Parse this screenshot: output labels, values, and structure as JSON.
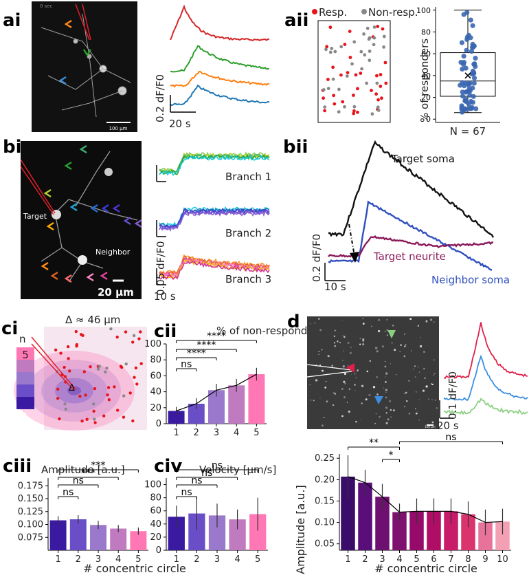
{
  "panel_labels": {
    "ai": "ai",
    "aii": "aii",
    "bi": "bi",
    "bii": "bii",
    "ci": "ci",
    "cii": "cii",
    "ciii": "ciii",
    "civ": "civ",
    "d": "d"
  },
  "ai": {
    "timestamp": "0 sec",
    "scalebar": "100 µm",
    "y_scale": "0.2 dF/F0",
    "x_scale": "20 s",
    "traces": [
      {
        "color": "#d62728",
        "peak": 1.0
      },
      {
        "color": "#2ca02c",
        "peak": 0.75
      },
      {
        "color": "#ff7f0e",
        "peak": 0.45
      },
      {
        "color": "#1f77b4",
        "peak": 0.55
      }
    ]
  },
  "aii": {
    "legend_resp": "Resp.",
    "legend_nonresp": "Non-resp.",
    "colors": {
      "resp": "#e8141c",
      "nonresp": "#888888",
      "box_points": "#3a66b0"
    },
    "n_label": "N = 67",
    "box": {
      "min": 6,
      "q1": 21,
      "median": 35,
      "q3": 61,
      "max": 100,
      "mean": 40
    }
  },
  "bi": {
    "target": "Target",
    "neighbor": "Neighbor",
    "scalebar": "20 µm",
    "y_scale": "0.05 dF/F0",
    "x_scale": "10 s",
    "branches": [
      "Branch 1",
      "Branch 2",
      "Branch 3"
    ]
  },
  "bii": {
    "target_soma": "Target soma",
    "target_neurite": "Target neurite",
    "neighbor_soma": "Neighbor soma",
    "y_scale": "0.2 dF/F0",
    "x_scale": "10 s",
    "colors": {
      "soma": "#111111",
      "neurite": "#8b1a5a",
      "neighbor": "#2f4fc0"
    }
  },
  "ci": {
    "delta": "Δ ≈ 46 µm",
    "n": "n",
    "top": "5",
    "bottom": "1",
    "delta_sym": "Δ",
    "ring_colors": [
      "#3a1aa0",
      "#6a4ec8",
      "#9a78cc",
      "#c07ac0",
      "#ff77b4"
    ]
  },
  "chart_data": [
    {
      "id": "cii",
      "type": "bar",
      "title": "% of non-responders",
      "categories": [
        "1",
        "2",
        "3",
        "4",
        "5"
      ],
      "values": [
        16,
        25,
        42,
        48,
        62
      ],
      "errors": [
        5,
        7,
        8,
        8,
        8
      ],
      "ylim": [
        0,
        100
      ],
      "yticks": [
        "0",
        "20",
        "40",
        "60",
        "80",
        "100"
      ],
      "significance": [
        "ns",
        "****",
        "****",
        "****"
      ],
      "colors": [
        "#3a1aa0",
        "#6a4ec8",
        "#9a78cc",
        "#c07ac0",
        "#ff77b4"
      ]
    },
    {
      "id": "ciii",
      "type": "bar",
      "title": "Amplitude [a.u.]",
      "categories": [
        "1",
        "2",
        "3",
        "4",
        "5"
      ],
      "values": [
        0.108,
        0.11,
        0.099,
        0.092,
        0.087
      ],
      "errors": [
        0.008,
        0.008,
        0.008,
        0.007,
        0.007
      ],
      "ylim": [
        0.05,
        0.19
      ],
      "yticks": [
        "0.075",
        "0.100",
        "0.125",
        "0.150",
        "0.175"
      ],
      "significance": [
        "ns",
        "ns",
        "***",
        "***"
      ],
      "colors": [
        "#3a1aa0",
        "#6a4ec8",
        "#9a78cc",
        "#c07ac0",
        "#ff77b4"
      ]
    },
    {
      "id": "civ",
      "type": "bar",
      "title": "Velocity [µm/s]",
      "categories": [
        "1",
        "2",
        "3",
        "4",
        "5"
      ],
      "values": [
        51,
        56,
        53,
        47,
        55
      ],
      "errors": [
        17,
        25,
        18,
        15,
        25
      ],
      "ylim": [
        0,
        110
      ],
      "yticks": [
        "0",
        "20",
        "40",
        "60",
        "80",
        "100"
      ],
      "significance": [
        "ns",
        "ns",
        "ns",
        "ns"
      ],
      "colors": [
        "#3a1aa0",
        "#6a4ec8",
        "#9a78cc",
        "#c07ac0",
        "#ff77b4"
      ]
    },
    {
      "id": "d",
      "type": "bar",
      "ylabel": "Amplitude [a.u.]",
      "categories": [
        "1",
        "2",
        "3",
        "4",
        "5",
        "6",
        "7",
        "8",
        "9",
        "10"
      ],
      "values": [
        0.207,
        0.193,
        0.16,
        0.124,
        0.126,
        0.126,
        0.126,
        0.119,
        0.1,
        0.102
      ],
      "errors": [
        0.05,
        0.03,
        0.03,
        0.02,
        0.03,
        0.03,
        0.03,
        0.03,
        0.03,
        0.03
      ],
      "ylim": [
        0.035,
        0.26
      ],
      "yticks": [
        "0.05",
        "0.10",
        "0.15",
        "0.20",
        "0.25"
      ],
      "significance": [
        "**",
        "*",
        "ns"
      ],
      "colors": [
        "#3a0d6b",
        "#5a0e7a",
        "#6e106f",
        "#7e1070",
        "#950a6a",
        "#b00d66",
        "#c81c6a",
        "#da336e",
        "#e8739a",
        "#f3a0b4"
      ]
    }
  ],
  "d": {
    "scalebar": "100 µm",
    "y_scale": "0.1 dF/F0",
    "x_scale": "20 s",
    "marker_colors": [
      "#8ccf82",
      "#e0204a",
      "#3a8fe0"
    ]
  },
  "x_axis_label": "# concentric circle"
}
